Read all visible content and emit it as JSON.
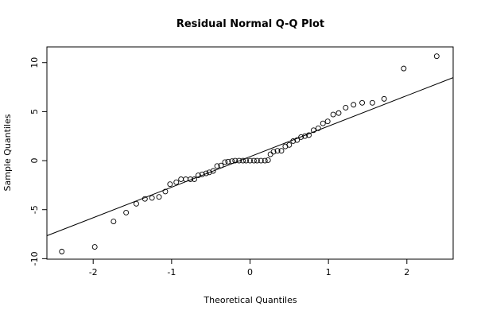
{
  "chart_data": {
    "type": "scatter",
    "title": "Residual Normal Q-Q Plot",
    "x_label": "Theoretical Quantiles",
    "y_label": "Sample Quantiles",
    "x": [
      -2.4,
      -1.98,
      -1.74,
      -1.58,
      -1.45,
      -1.34,
      -1.25,
      -1.16,
      -1.08,
      -1.02,
      -0.94,
      -0.88,
      -0.82,
      -0.76,
      -0.71,
      -0.66,
      -0.61,
      -0.56,
      -0.52,
      -0.47,
      -0.42,
      -0.37,
      -0.32,
      -0.28,
      -0.23,
      -0.19,
      -0.14,
      -0.09,
      -0.05,
      0,
      0.05,
      0.09,
      0.14,
      0.19,
      0.23,
      0.26,
      0.3,
      0.35,
      0.4,
      0.45,
      0.5,
      0.55,
      0.6,
      0.65,
      0.7,
      0.75,
      0.81,
      0.87,
      0.93,
      0.99,
      1.06,
      1.13,
      1.22,
      1.32,
      1.43,
      1.56,
      1.71,
      1.96,
      2.38
    ],
    "values": [
      -9.27,
      -8.8,
      -6.2,
      -5.3,
      -4.4,
      -3.9,
      -3.8,
      -3.7,
      -3.15,
      -2.4,
      -2.2,
      -1.9,
      -1.9,
      -1.9,
      -1.9,
      -1.5,
      -1.4,
      -1.3,
      -1.2,
      -1.05,
      -0.55,
      -0.5,
      -0.15,
      -0.1,
      -0.05,
      0,
      0,
      0,
      0,
      0,
      0,
      0,
      0,
      0,
      0.05,
      0.65,
      0.9,
      1.0,
      1.0,
      1.45,
      1.6,
      2.0,
      2.1,
      2.4,
      2.5,
      2.6,
      3.1,
      3.3,
      3.8,
      4.0,
      4.7,
      4.85,
      5.4,
      5.7,
      5.9,
      5.9,
      6.3,
      9.4,
      10.65
    ],
    "color": "#000000",
    "reference_line": {
      "x": [
        -2.59,
        2.59
      ],
      "y": [
        -7.66,
        8.47
      ]
    },
    "xlim": [
      -2.59,
      2.59
    ],
    "xticks": [
      -2,
      -1,
      0,
      1,
      2
    ],
    "ylim": [
      -10.05,
      11.6
    ],
    "yticks": [
      -10,
      -5,
      0,
      5,
      10
    ]
  }
}
